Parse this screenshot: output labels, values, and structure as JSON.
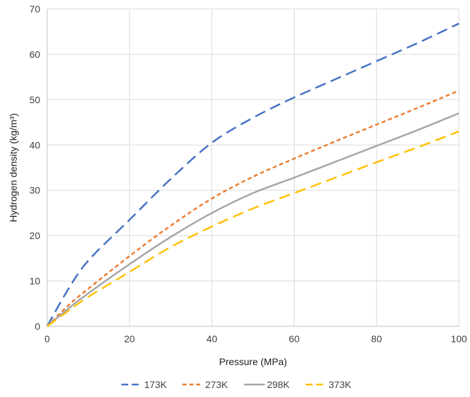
{
  "chart_data": {
    "type": "line",
    "title": "",
    "xlabel": "Pressure (MPa)",
    "ylabel": "Hydrogen density (kg/m³)",
    "xlim": [
      0,
      100
    ],
    "ylim": [
      0,
      70
    ],
    "xticks": [
      "0",
      "20",
      "40",
      "60",
      "80",
      "100"
    ],
    "yticks": [
      "0",
      "10",
      "20",
      "30",
      "40",
      "50",
      "60",
      "70"
    ],
    "grid": true,
    "legend_position": "bottom",
    "series": [
      {
        "name": "173K",
        "color": "#4472C4",
        "dash": "long-dash",
        "points": [
          [
            0,
            0
          ],
          [
            5,
            8
          ],
          [
            10,
            14.5
          ],
          [
            20,
            23.5
          ],
          [
            30,
            32.5
          ],
          [
            40,
            40.5
          ],
          [
            50,
            46
          ],
          [
            60,
            50.5
          ],
          [
            70,
            54.5
          ],
          [
            80,
            58.5
          ],
          [
            90,
            62.5
          ],
          [
            100,
            66.8
          ]
        ]
      },
      {
        "name": "273K",
        "color": "#ED7D31",
        "dash": "short-dash",
        "points": [
          [
            0,
            0
          ],
          [
            5,
            4.5
          ],
          [
            10,
            8.3
          ],
          [
            20,
            15.5
          ],
          [
            30,
            22.2
          ],
          [
            40,
            28.2
          ],
          [
            50,
            33
          ],
          [
            60,
            37
          ],
          [
            70,
            40.8
          ],
          [
            80,
            44.5
          ],
          [
            90,
            48.2
          ],
          [
            100,
            52
          ]
        ]
      },
      {
        "name": "298K",
        "color": "#A5A5A5",
        "dash": "solid",
        "points": [
          [
            0,
            0
          ],
          [
            5,
            3.8
          ],
          [
            10,
            7.3
          ],
          [
            20,
            13.7
          ],
          [
            30,
            19.7
          ],
          [
            40,
            25
          ],
          [
            50,
            29.4
          ],
          [
            60,
            32.8
          ],
          [
            70,
            36.3
          ],
          [
            80,
            39.8
          ],
          [
            90,
            43.3
          ],
          [
            100,
            47
          ]
        ]
      },
      {
        "name": "373K",
        "color": "#FFC000",
        "dash": "long-dash",
        "points": [
          [
            0,
            0
          ],
          [
            5,
            3.3
          ],
          [
            10,
            6.5
          ],
          [
            20,
            12
          ],
          [
            30,
            17.5
          ],
          [
            40,
            22
          ],
          [
            50,
            26
          ],
          [
            60,
            29.4
          ],
          [
            70,
            32.8
          ],
          [
            80,
            36.2
          ],
          [
            90,
            39.5
          ],
          [
            100,
            43
          ]
        ]
      }
    ]
  }
}
